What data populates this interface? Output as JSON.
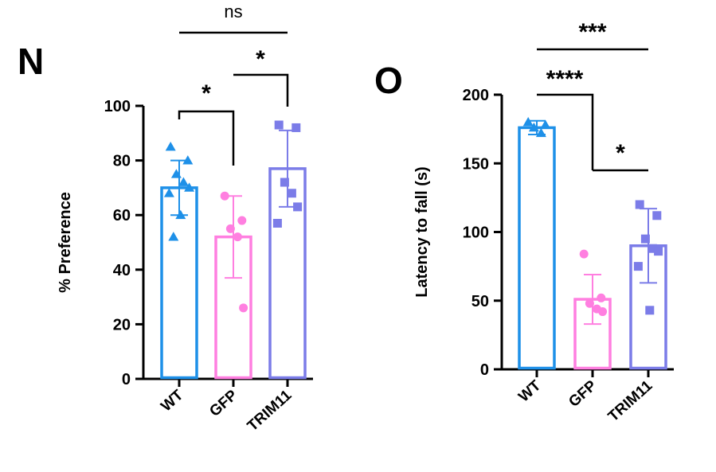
{
  "chart_data": [
    {
      "panel_label": "N",
      "type": "bar",
      "ylabel": "% Preference",
      "ylim": [
        0,
        100
      ],
      "yticks": [
        0,
        20,
        40,
        60,
        80,
        100
      ],
      "categories": [
        "WT",
        "GFP",
        "TRIM11"
      ],
      "series": [
        {
          "name": "WT",
          "color": "#1e90e8",
          "marker": "triangle",
          "mean": 70,
          "sd": 10,
          "points": [
            85,
            80,
            75,
            72,
            70,
            68,
            60,
            52
          ]
        },
        {
          "name": "GFP",
          "color": "#ff7fe0",
          "marker": "circle",
          "mean": 52,
          "sd": 15,
          "points": [
            67,
            58,
            55,
            52,
            26
          ]
        },
        {
          "name": "TRIM11",
          "color": "#7b7ce8",
          "marker": "square",
          "mean": 77,
          "sd": 14,
          "points": [
            93,
            92,
            72,
            68,
            63,
            57
          ]
        }
      ],
      "significance": [
        {
          "from": "WT",
          "to": "GFP",
          "label": "*"
        },
        {
          "from": "GFP",
          "to": "TRIM11",
          "label": "*"
        },
        {
          "from": "WT",
          "to": "TRIM11",
          "label": "ns"
        }
      ]
    },
    {
      "panel_label": "O",
      "type": "bar",
      "ylabel": "Latency to fall (s)",
      "ylim": [
        0,
        200
      ],
      "yticks": [
        0,
        50,
        100,
        150,
        200
      ],
      "categories": [
        "WT",
        "GFP",
        "TRIM11"
      ],
      "series": [
        {
          "name": "WT",
          "color": "#1e90e8",
          "marker": "triangle",
          "mean": 176,
          "sd": 5,
          "points": [
            180,
            178,
            176,
            172
          ]
        },
        {
          "name": "GFP",
          "color": "#ff7fe0",
          "marker": "circle",
          "mean": 51,
          "sd": 18,
          "points": [
            84,
            52,
            48,
            44,
            42
          ]
        },
        {
          "name": "TRIM11",
          "color": "#7b7ce8",
          "marker": "square",
          "mean": 90,
          "sd": 27,
          "points": [
            120,
            112,
            95,
            88,
            86,
            75,
            43
          ]
        }
      ],
      "significance": [
        {
          "from": "WT",
          "to": "GFP",
          "label": "****"
        },
        {
          "from": "GFP",
          "to": "TRIM11",
          "label": "*"
        },
        {
          "from": "WT",
          "to": "TRIM11",
          "label": "***"
        }
      ]
    }
  ]
}
